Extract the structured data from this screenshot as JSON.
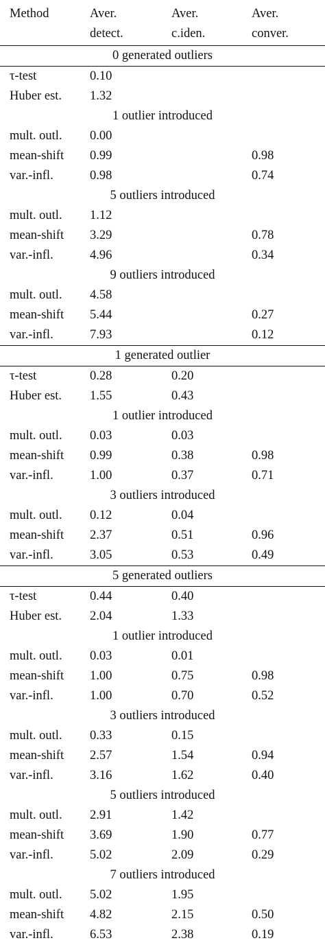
{
  "header": {
    "method": "Method",
    "detect": [
      "Aver.",
      "detect."
    ],
    "ciden": [
      "Aver.",
      "c.iden."
    ],
    "conver": [
      "Aver.",
      "conver."
    ]
  },
  "sections": [
    {
      "title": "0 generated outliers",
      "base_rows": [
        {
          "method": "τ-test",
          "detect": "0.10",
          "ciden": "",
          "conver": ""
        },
        {
          "method": "Huber est.",
          "detect": "1.32",
          "ciden": "",
          "conver": ""
        }
      ],
      "groups": [
        {
          "title": "1 outlier introduced",
          "rows": [
            {
              "method": "mult. outl.",
              "detect": "0.00",
              "ciden": "",
              "conver": ""
            },
            {
              "method": "mean-shift",
              "detect": "0.99",
              "ciden": "",
              "conver": "0.98"
            },
            {
              "method": "var.-infl.",
              "detect": "0.98",
              "ciden": "",
              "conver": "0.74"
            }
          ]
        },
        {
          "title": "5 outliers introduced",
          "rows": [
            {
              "method": "mult. outl.",
              "detect": "1.12",
              "ciden": "",
              "conver": ""
            },
            {
              "method": "mean-shift",
              "detect": "3.29",
              "ciden": "",
              "conver": "0.78"
            },
            {
              "method": "var.-infl.",
              "detect": "4.96",
              "ciden": "",
              "conver": "0.34"
            }
          ]
        },
        {
          "title": "9 outliers introduced",
          "rows": [
            {
              "method": "mult. outl.",
              "detect": "4.58",
              "ciden": "",
              "conver": ""
            },
            {
              "method": "mean-shift",
              "detect": "5.44",
              "ciden": "",
              "conver": "0.27"
            },
            {
              "method": "var.-infl.",
              "detect": "7.93",
              "ciden": "",
              "conver": "0.12"
            }
          ]
        }
      ]
    },
    {
      "title": "1 generated outlier",
      "base_rows": [
        {
          "method": "τ-test",
          "detect": "0.28",
          "ciden": "0.20",
          "conver": ""
        },
        {
          "method": "Huber est.",
          "detect": "1.55",
          "ciden": "0.43",
          "conver": ""
        }
      ],
      "groups": [
        {
          "title": "1 outlier introduced",
          "rows": [
            {
              "method": "mult. outl.",
              "detect": "0.03",
              "ciden": "0.03",
              "conver": ""
            },
            {
              "method": "mean-shift",
              "detect": "0.99",
              "ciden": "0.38",
              "conver": "0.98"
            },
            {
              "method": "var.-infl.",
              "detect": "1.00",
              "ciden": "0.37",
              "conver": "0.71"
            }
          ]
        },
        {
          "title": "3 outliers introduced",
          "rows": [
            {
              "method": "mult. outl.",
              "detect": "0.12",
              "ciden": "0.04",
              "conver": ""
            },
            {
              "method": "mean-shift",
              "detect": "2.37",
              "ciden": "0.51",
              "conver": "0.96"
            },
            {
              "method": "var.-infl.",
              "detect": "3.05",
              "ciden": "0.53",
              "conver": "0.49"
            }
          ]
        }
      ]
    },
    {
      "title": "5 generated outliers",
      "base_rows": [
        {
          "method": "τ-test",
          "detect": "0.44",
          "ciden": "0.40",
          "conver": ""
        },
        {
          "method": "Huber est.",
          "detect": "2.04",
          "ciden": "1.33",
          "conver": ""
        }
      ],
      "groups": [
        {
          "title": "1 outlier introduced",
          "rows": [
            {
              "method": "mult. outl.",
              "detect": "0.03",
              "ciden": "0.01",
              "conver": ""
            },
            {
              "method": "mean-shift",
              "detect": "1.00",
              "ciden": "0.75",
              "conver": "0.98"
            },
            {
              "method": "var.-infl.",
              "detect": "1.00",
              "ciden": "0.70",
              "conver": "0.52"
            }
          ]
        },
        {
          "title": "3 outliers introduced",
          "rows": [
            {
              "method": "mult. outl.",
              "detect": "0.33",
              "ciden": "0.15",
              "conver": ""
            },
            {
              "method": "mean-shift",
              "detect": "2.57",
              "ciden": "1.54",
              "conver": "0.94"
            },
            {
              "method": "var.-infl.",
              "detect": "3.16",
              "ciden": "1.62",
              "conver": "0.40"
            }
          ]
        },
        {
          "title": "5 outliers introduced",
          "rows": [
            {
              "method": "mult. outl.",
              "detect": "2.91",
              "ciden": "1.42",
              "conver": ""
            },
            {
              "method": "mean-shift",
              "detect": "3.69",
              "ciden": "1.90",
              "conver": "0.77"
            },
            {
              "method": "var.-infl.",
              "detect": "5.02",
              "ciden": "2.09",
              "conver": "0.29"
            }
          ]
        },
        {
          "title": "7 outliers introduced",
          "rows": [
            {
              "method": "mult. outl.",
              "detect": "5.02",
              "ciden": "1.95",
              "conver": ""
            },
            {
              "method": "mean-shift",
              "detect": "4.82",
              "ciden": "2.15",
              "conver": "0.50"
            },
            {
              "method": "var.-infl.",
              "detect": "6.53",
              "ciden": "2.38",
              "conver": "0.19"
            }
          ]
        }
      ]
    }
  ]
}
